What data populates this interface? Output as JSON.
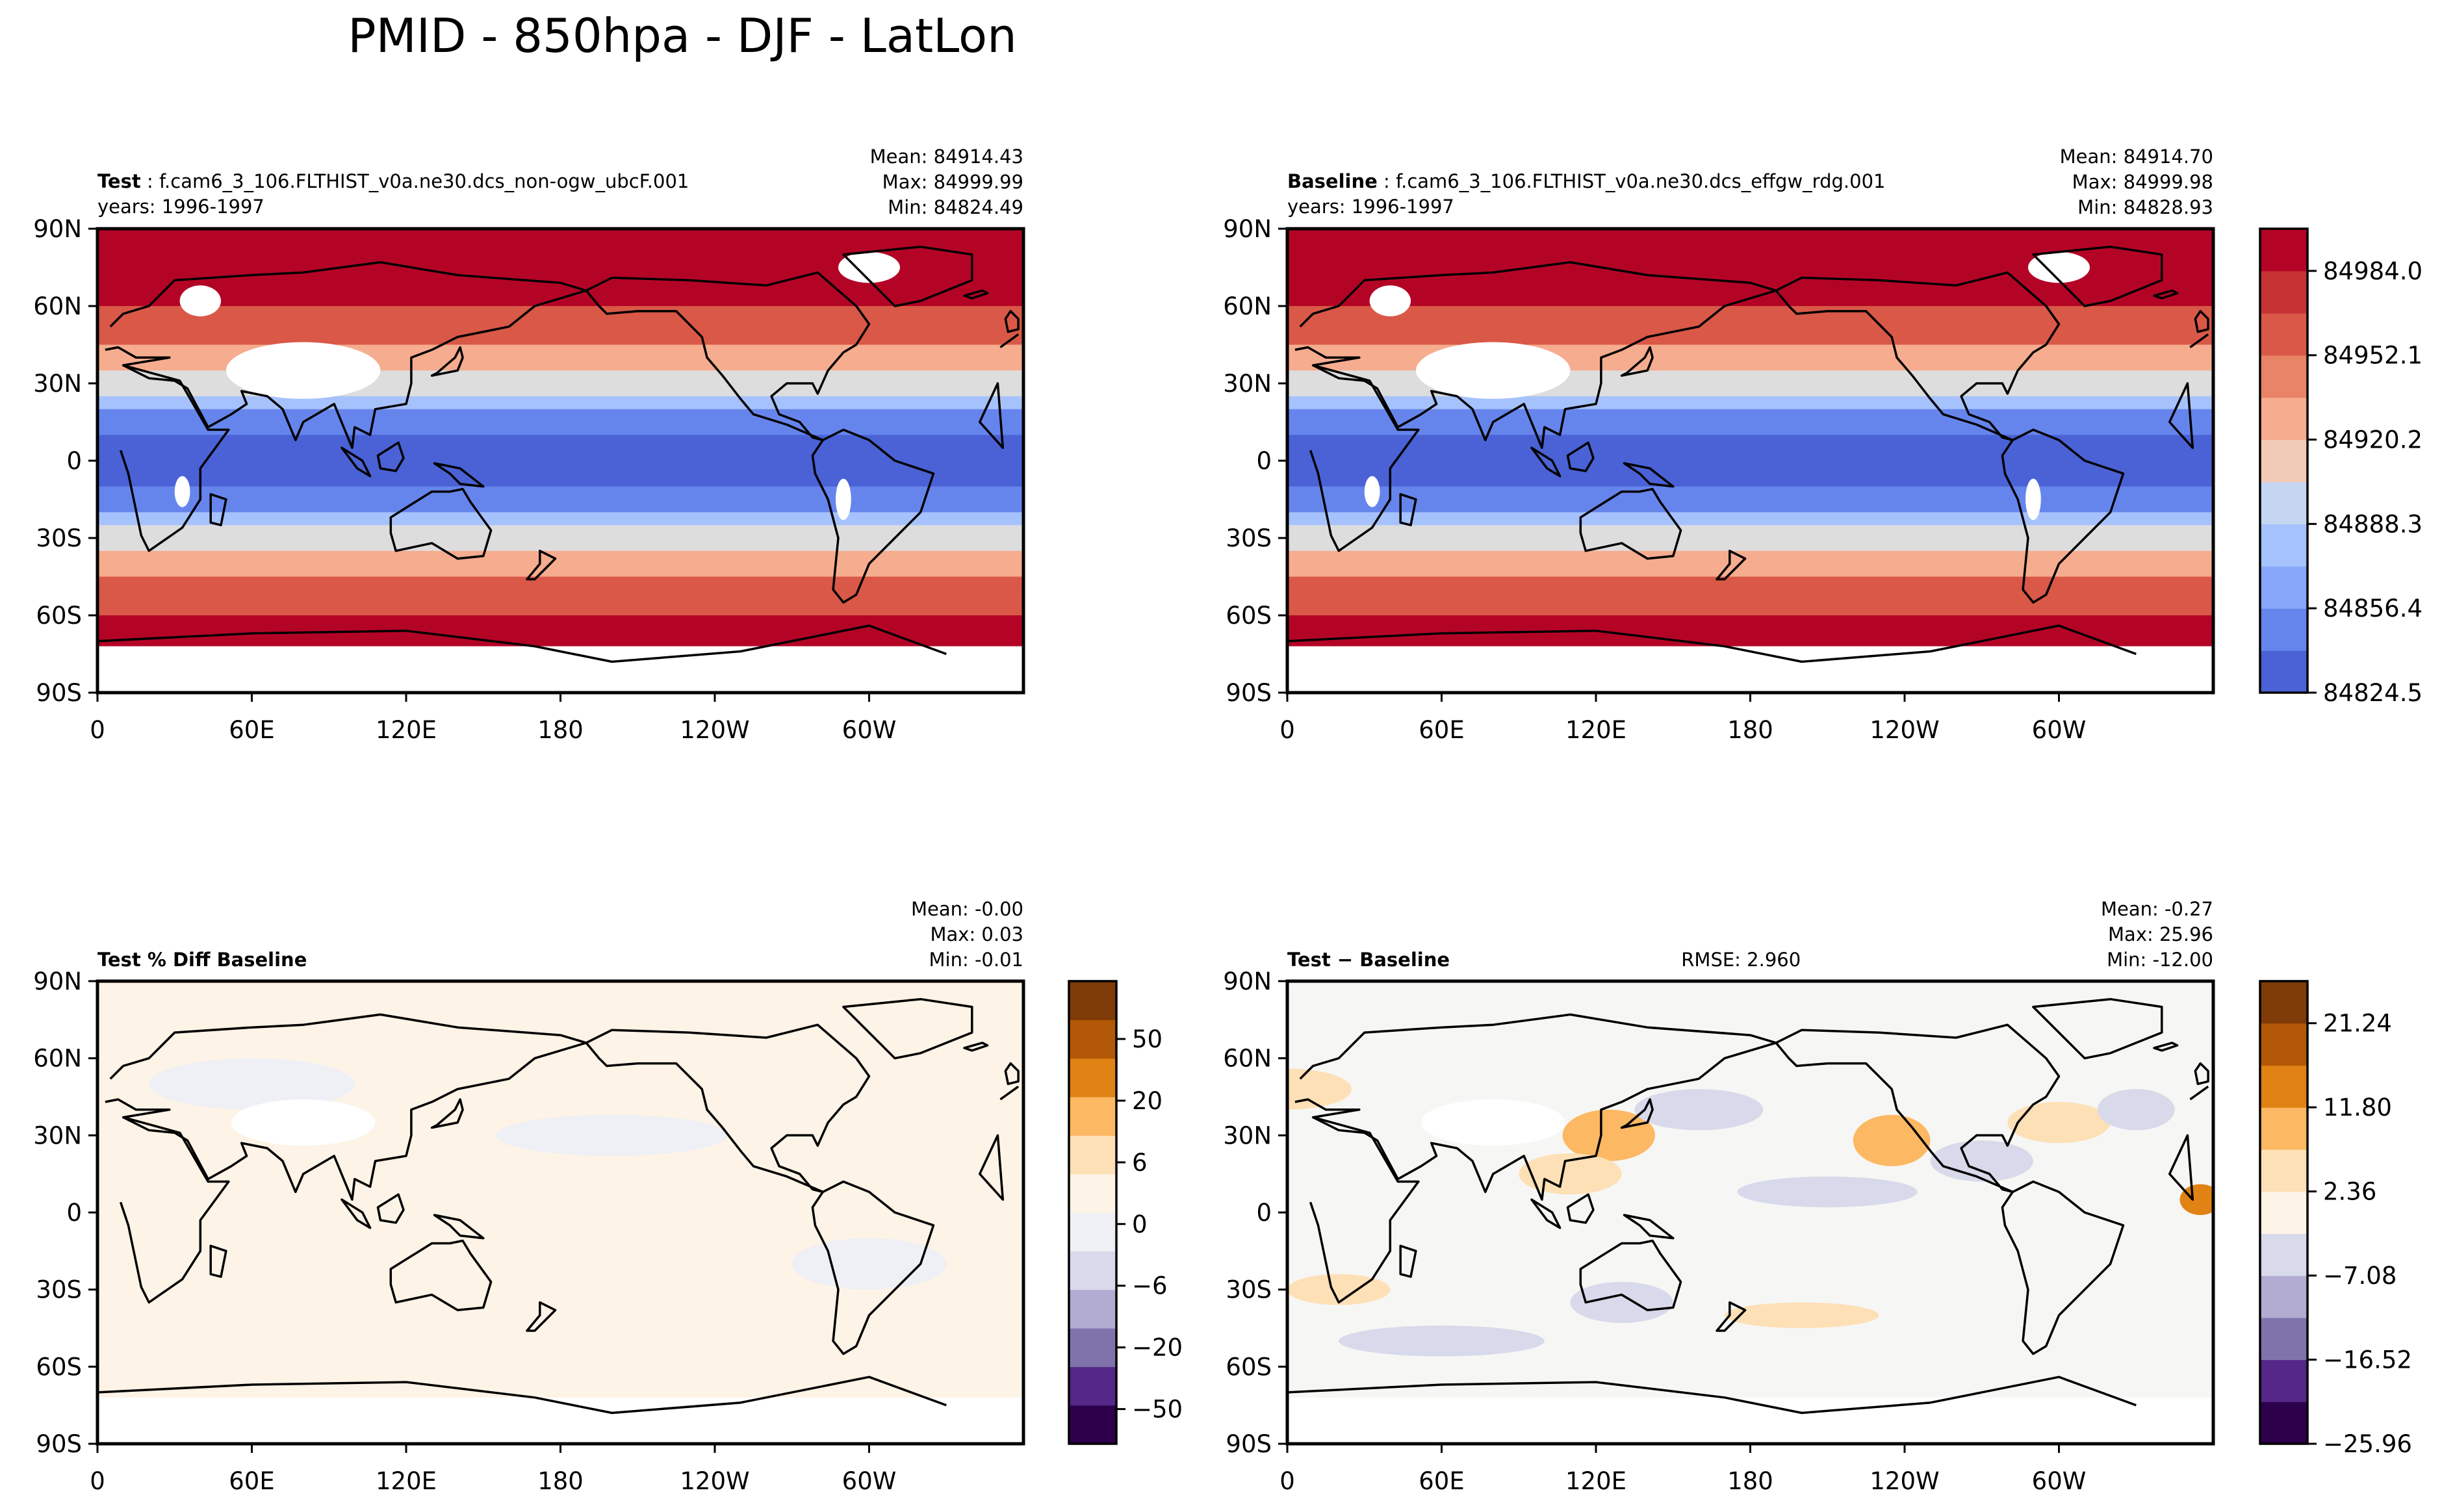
{
  "figure": {
    "title": "PMID - 850hpa - DJF - LatLon"
  },
  "colors": {
    "land_outline": "#000000",
    "missing": "#ffffff",
    "coolwarm": [
      "#4a62d6",
      "#6685ec",
      "#86a7fa",
      "#a6c2fd",
      "#c5d6f2",
      "#dddddd",
      "#f2cbb7",
      "#f6ac8e",
      "#ea8466",
      "#d95847",
      "#c53334",
      "#b40426"
    ],
    "purple_orange": [
      "#2d004b",
      "#542788",
      "#8073ac",
      "#b2abd2",
      "#d8daeb",
      "#eef0f5",
      "#fdf3e6",
      "#fee0b6",
      "#fdb863",
      "#e08214",
      "#b35806",
      "#7f3b08"
    ]
  },
  "chart_data": [
    {
      "id": "test",
      "type": "heatmap",
      "title_bold": "Test",
      "title_rest": " : f.cam6_3_106.FLTHIST_v0a.ne30.dcs_non-ogw_ubcF.001",
      "subtitle": "years: 1996-1997",
      "stats": [
        "Mean: 84914.43",
        "Max: 84999.99",
        "Min: 84824.49"
      ],
      "rmse": "",
      "xticks": [
        "0",
        "60E",
        "120E",
        "180",
        "120W",
        "60W"
      ],
      "yticks": [
        "90N",
        "60N",
        "30N",
        "0",
        "30S",
        "60S",
        "90S"
      ],
      "xlim": [
        0,
        360
      ],
      "ylim": [
        -90,
        90
      ],
      "field": "absolute",
      "colorbar": null
    },
    {
      "id": "baseline",
      "type": "heatmap",
      "title_bold": "Baseline",
      "title_rest": " : f.cam6_3_106.FLTHIST_v0a.ne30.dcs_effgw_rdg.001",
      "subtitle": "years: 1996-1997",
      "stats": [
        "Mean: 84914.70",
        "Max: 84999.98",
        "Min: 84828.93"
      ],
      "rmse": "",
      "xticks": [
        "0",
        "60E",
        "120E",
        "180",
        "120W",
        "60W"
      ],
      "yticks": [
        "90N",
        "60N",
        "30N",
        "0",
        "30S",
        "60S",
        "90S"
      ],
      "xlim": [
        0,
        360
      ],
      "ylim": [
        -90,
        90
      ],
      "field": "absolute",
      "colorbar": {
        "palette": "coolwarm",
        "levels": 11,
        "labels": [
          "84984.0",
          "84952.1",
          "84920.2",
          "84888.3",
          "84856.4",
          "84824.5"
        ]
      }
    },
    {
      "id": "pctdiff",
      "type": "heatmap",
      "title_bold": "Test % Diff Baseline",
      "title_rest": "",
      "subtitle": "",
      "stats": [
        "Mean: -0.00",
        "Max:  0.03",
        "Min: -0.01"
      ],
      "rmse": "",
      "xticks": [
        "0",
        "60E",
        "120E",
        "180",
        "120W",
        "60W"
      ],
      "yticks": [
        "90N",
        "60N",
        "30N",
        "0",
        "30S",
        "60S",
        "90S"
      ],
      "xlim": [
        0,
        360
      ],
      "ylim": [
        -90,
        90
      ],
      "field": "pct",
      "colorbar": {
        "palette": "purple_orange",
        "levels": 12,
        "labels": [
          "50",
          "20",
          "6",
          "0",
          "−6",
          "−20",
          "−50"
        ]
      }
    },
    {
      "id": "diff",
      "type": "heatmap",
      "title_bold": "Test − Baseline",
      "title_rest": "",
      "subtitle": "",
      "stats": [
        "Mean: -0.27",
        "Max: 25.96",
        "Min: -12.00"
      ],
      "rmse": "RMSE: 2.960",
      "xticks": [
        "0",
        "60E",
        "120E",
        "180",
        "120W",
        "60W"
      ],
      "yticks": [
        "90N",
        "60N",
        "30N",
        "0",
        "30S",
        "60S",
        "90S"
      ],
      "xlim": [
        0,
        360
      ],
      "ylim": [
        -90,
        90
      ],
      "field": "diff",
      "colorbar": {
        "palette": "purple_orange",
        "levels": 11,
        "labels": [
          "21.24",
          "11.80",
          "2.36",
          "−7.08",
          "−16.52",
          "−25.96"
        ]
      }
    }
  ]
}
